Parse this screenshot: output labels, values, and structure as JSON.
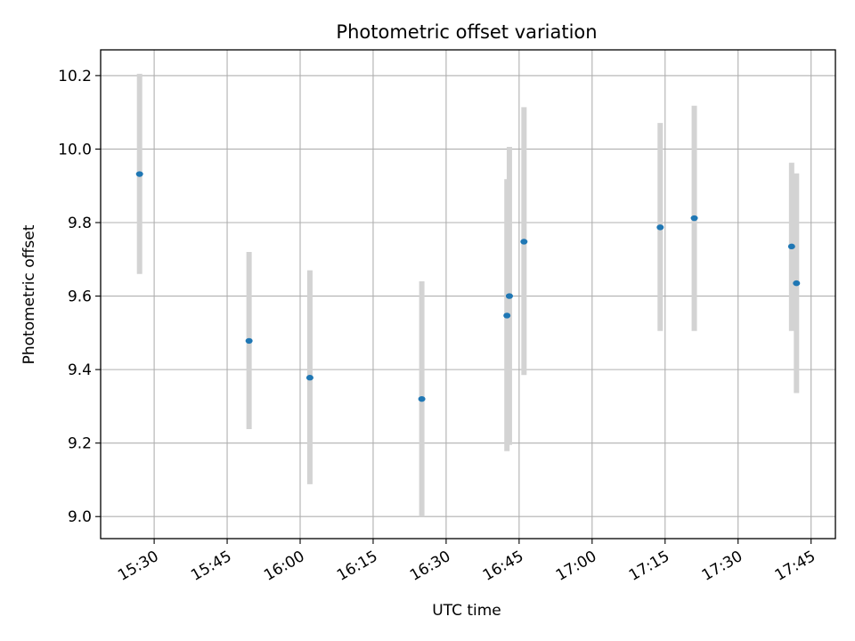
{
  "chart_data": {
    "type": "scatter",
    "title": "Photometric offset variation",
    "xlabel": "UTC time",
    "ylabel": "Photometric offset",
    "x_unit": "UTC time (HH:MM)",
    "xlim": [
      "15:19",
      "17:50"
    ],
    "ylim": [
      8.94,
      10.27
    ],
    "x_ticks": [
      "15:30",
      "15:45",
      "16:00",
      "16:15",
      "16:30",
      "16:45",
      "17:00",
      "17:15",
      "17:30",
      "17:45"
    ],
    "y_ticks": [
      "9.0",
      "9.2",
      "9.4",
      "9.6",
      "9.8",
      "10.0",
      "10.2"
    ],
    "grid": true,
    "error_bar_color": "#d3d3d3",
    "marker_color": "#1f77b4",
    "series": [
      {
        "points": [
          {
            "time": "15:27:00",
            "y": 9.932,
            "ylow": 9.66,
            "yhigh": 10.205
          },
          {
            "time": "15:49:30",
            "y": 9.478,
            "ylow": 9.238,
            "yhigh": 9.72
          },
          {
            "time": "16:02:00",
            "y": 9.378,
            "ylow": 9.088,
            "yhigh": 9.67
          },
          {
            "time": "16:25:00",
            "y": 9.32,
            "ylow": 9.0,
            "yhigh": 9.64
          },
          {
            "time": "16:42:30",
            "y": 9.547,
            "ylow": 9.178,
            "yhigh": 9.918
          },
          {
            "time": "16:43:00",
            "y": 9.6,
            "ylow": 9.195,
            "yhigh": 10.006
          },
          {
            "time": "16:46:00",
            "y": 9.748,
            "ylow": 9.385,
            "yhigh": 10.114
          },
          {
            "time": "17:14:00",
            "y": 9.787,
            "ylow": 9.505,
            "yhigh": 10.071
          },
          {
            "time": "17:21:00",
            "y": 9.812,
            "ylow": 9.505,
            "yhigh": 10.118
          },
          {
            "time": "17:41:00",
            "y": 9.735,
            "ylow": 9.505,
            "yhigh": 9.963
          },
          {
            "time": "17:42:00",
            "y": 9.635,
            "ylow": 9.336,
            "yhigh": 9.934
          }
        ]
      }
    ]
  }
}
